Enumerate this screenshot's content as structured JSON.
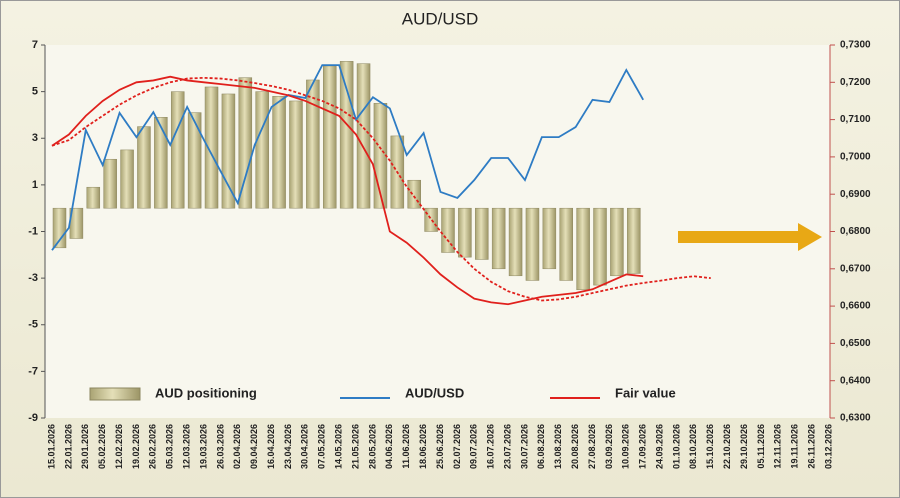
{
  "chart_data": {
    "type": "bar",
    "title": "AUD/USD",
    "categories": [
      "15.01.2026",
      "22.01.2026",
      "29.01.2026",
      "05.02.2026",
      "12.02.2026",
      "19.02.2026",
      "26.02.2026",
      "05.03.2026",
      "12.03.2026",
      "19.03.2026",
      "26.03.2026",
      "02.04.2026",
      "09.04.2026",
      "16.04.2026",
      "23.04.2026",
      "30.04.2026",
      "07.05.2026",
      "14.05.2026",
      "21.05.2026",
      "28.05.2026",
      "04.06.2026",
      "11.06.2026",
      "18.06.2026",
      "25.06.2026",
      "02.07.2026",
      "09.07.2026",
      "16.07.2026",
      "23.07.2026",
      "30.07.2026",
      "06.08.2026",
      "13.08.2026",
      "20.08.2026",
      "27.08.2026",
      "03.09.2026",
      "10.09.2026",
      "17.09.2026",
      "24.09.2026",
      "01.10.2026",
      "08.10.2026",
      "15.10.2026",
      "22.10.2026",
      "29.10.2026",
      "05.11.2026",
      "12.11.2026",
      "19.11.2026",
      "26.11.2026",
      "03.12.2026"
    ],
    "series": [
      {
        "name": "AUD positioning",
        "type": "bar",
        "color": "#c9c394",
        "values": [
          -1.7,
          -1.3,
          0.9,
          2.1,
          2.5,
          3.5,
          3.9,
          5.0,
          4.1,
          5.2,
          4.9,
          5.6,
          5.0,
          4.8,
          4.6,
          5.5,
          6.1,
          6.3,
          6.2,
          4.5,
          3.1,
          1.2,
          -1.0,
          -1.9,
          -2.1,
          -2.2,
          -2.6,
          -2.9,
          -3.1,
          -2.6,
          -3.1,
          -3.5,
          -3.3,
          -2.9,
          -2.8,
          null,
          null,
          null,
          null,
          null,
          null,
          null,
          null,
          null,
          null,
          null,
          null
        ]
      },
      {
        "name": "AUD/USD",
        "type": "line",
        "axis": "y2",
        "color": "#2e7cc4",
        "values": [
          0.675,
          0.681,
          0.7072,
          0.6978,
          0.7118,
          0.7053,
          0.712,
          0.7032,
          0.7134,
          0.7045,
          0.696,
          0.6876,
          0.7032,
          0.7134,
          0.7166,
          0.7158,
          0.7246,
          0.7246,
          0.71,
          0.716,
          0.713,
          0.7005,
          0.7064,
          0.6906,
          0.689,
          0.6938,
          0.6997,
          0.6997,
          0.6938,
          0.7053,
          0.7053,
          0.708,
          0.7153,
          0.7147,
          0.7233,
          0.7153,
          null,
          null,
          null,
          null,
          null,
          null,
          null,
          null,
          null,
          null,
          null
        ]
      },
      {
        "name": "Fair value",
        "type": "line",
        "axis": "y2",
        "color": "#e0201c",
        "values": [
          0.703,
          0.706,
          0.711,
          0.715,
          0.718,
          0.72,
          0.7205,
          0.7215,
          0.7205,
          0.72,
          0.7195,
          0.719,
          0.7185,
          0.7175,
          0.7165,
          0.715,
          0.713,
          0.711,
          0.706,
          0.698,
          0.68,
          0.677,
          0.673,
          0.6685,
          0.665,
          0.662,
          0.661,
          0.6605,
          0.6615,
          0.6625,
          0.663,
          0.6635,
          0.6645,
          0.6665,
          0.6685,
          0.668,
          null,
          null,
          null,
          null,
          null,
          null,
          null,
          null,
          null,
          null,
          null
        ]
      },
      {
        "type": "line",
        "axis": "y2",
        "color": "#e0201c",
        "dashed": true,
        "values": [
          0.703,
          0.7045,
          0.708,
          0.711,
          0.714,
          0.7165,
          0.7185,
          0.72,
          0.721,
          0.7212,
          0.721,
          0.7205,
          0.7198,
          0.719,
          0.718,
          0.7165,
          0.715,
          0.713,
          0.71,
          0.705,
          0.699,
          0.692,
          0.686,
          0.68,
          0.6745,
          0.67,
          0.6665,
          0.664,
          0.6625,
          0.6615,
          0.6618,
          0.6625,
          0.6635,
          0.6645,
          0.6655,
          0.6662,
          0.6668,
          0.6675,
          0.668,
          0.6675,
          null,
          null,
          null,
          null,
          null,
          null,
          null
        ]
      }
    ],
    "ylim": [
      -9,
      7
    ],
    "yticks": [
      7,
      5,
      3,
      1,
      -1,
      -3,
      -5,
      -7,
      -9
    ],
    "y2lim": [
      0.63,
      0.73
    ],
    "y2ticks": [
      {
        "value": 0.73,
        "label": "0,7300"
      },
      {
        "value": 0.72,
        "label": "0,7200"
      },
      {
        "value": 0.71,
        "label": "0,7100"
      },
      {
        "value": 0.7,
        "label": "0,7000"
      },
      {
        "value": 0.69,
        "label": "0,6900"
      },
      {
        "value": 0.68,
        "label": "0,6800"
      },
      {
        "value": 0.67,
        "label": "0,6700"
      },
      {
        "value": 0.66,
        "label": "0,6600"
      },
      {
        "value": 0.65,
        "label": "0,6500"
      },
      {
        "value": 0.64,
        "label": "0,6400"
      },
      {
        "value": 0.63,
        "label": "0,6300"
      }
    ],
    "grid": false,
    "legend": "bottom"
  }
}
